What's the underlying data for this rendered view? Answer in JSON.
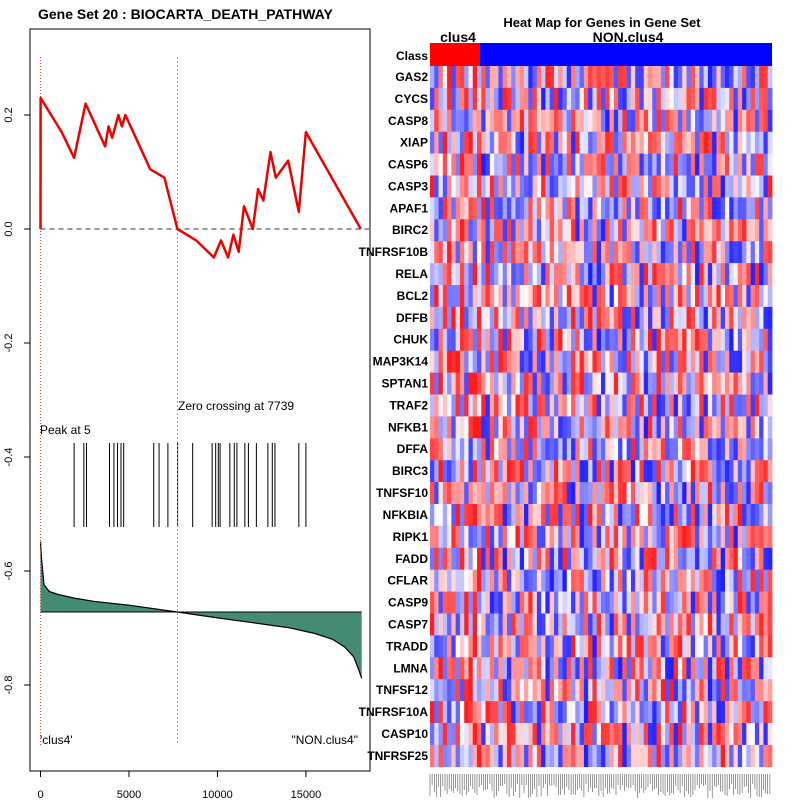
{
  "chart_data": [
    {
      "type": "line",
      "title": "Gene Set  20 : BIOCARTA_DEATH_PATHWAY",
      "xlim": [
        0,
        18000
      ],
      "ylim": [
        -0.9,
        0.3
      ],
      "x_ticks": [
        0,
        5000,
        10000,
        15000
      ],
      "y_ticks": [
        0.2,
        0.0,
        -0.2,
        -0.4,
        -0.6,
        -0.8
      ],
      "y_tick_labels": [
        "0.2",
        "0.0",
        "-0.2",
        "-0.4",
        "-0.6",
        "-0.8"
      ],
      "peak_label": "Peak at 5",
      "zero_crossing_label": "Zero crossing at 7739",
      "peak_x": 5,
      "zero_crossing_x": 7739,
      "left_label": "'clus4'",
      "right_label": "\"NON.clus4\"",
      "colors": {
        "es_line": "#ee0000",
        "ranked_fill": "#458b74",
        "zero_line": "#66cc66",
        "peak_line": "#cc3333"
      },
      "series": [
        {
          "x": [
            0,
            5,
            1200,
            1900,
            2550,
            3650,
            3850,
            4050,
            4400,
            4600,
            4800,
            6200,
            7000,
            7739,
            8800,
            9800,
            10200,
            10600,
            10900,
            11200,
            11500,
            12000,
            12300,
            12600,
            13000,
            13300,
            14000,
            14600,
            15000,
            18100
          ],
          "y": [
            0.0,
            0.23,
            0.17,
            0.125,
            0.22,
            0.145,
            0.18,
            0.16,
            0.2,
            0.18,
            0.2,
            0.105,
            0.09,
            0.0,
            -0.02,
            -0.05,
            -0.02,
            -0.05,
            -0.01,
            -0.04,
            0.04,
            0.0,
            0.07,
            0.05,
            0.135,
            0.09,
            0.12,
            0.03,
            0.17,
            0.0
          ]
        }
      ],
      "hit_positions": [
        1900,
        2450,
        2600,
        3900,
        4150,
        4350,
        4550,
        4700,
        6400,
        6700,
        7200,
        7750,
        8600,
        9700,
        9900,
        10050,
        10150,
        10700,
        10950,
        11100,
        11550,
        11750,
        12200,
        12850,
        13100,
        13250,
        14600,
        15000
      ],
      "ranked_metric": {
        "x": [
          0,
          50,
          200,
          500,
          1000,
          2000,
          3000,
          5000,
          7739,
          10000,
          12000,
          14000,
          15500,
          16500,
          17200,
          17700,
          18000,
          18150
        ],
        "y": [
          0.36,
          0.28,
          0.14,
          0.105,
          0.09,
          0.07,
          0.055,
          0.035,
          0.0,
          -0.03,
          -0.055,
          -0.08,
          -0.11,
          -0.14,
          -0.18,
          -0.23,
          -0.3,
          -0.34
        ]
      }
    },
    {
      "type": "heatmap",
      "title": "Heat Map for Genes in Gene Set",
      "class_label": "Class",
      "groups": [
        "clus4",
        "NON.clus4"
      ],
      "group_colors": [
        "#ff0000",
        "#0000ff"
      ],
      "clus4_fraction": 0.145,
      "genes": [
        "GAS2",
        "CYCS",
        "CASP8",
        "XIAP",
        "CASP6",
        "CASP3",
        "APAF1",
        "BIRC2",
        "TNFRSF10B",
        "RELA",
        "BCL2",
        "DFFB",
        "CHUK",
        "MAP3K14",
        "SPTAN1",
        "TRAF2",
        "NFKB1",
        "DFFA",
        "BIRC3",
        "TNFSF10",
        "NFKBIA",
        "RIPK1",
        "FADD",
        "CFLAR",
        "CASP9",
        "CASP7",
        "TRADD",
        "LMNA",
        "TNFSF12",
        "TNFRSF10A",
        "CASP10",
        "TNFRSF25"
      ]
    }
  ]
}
